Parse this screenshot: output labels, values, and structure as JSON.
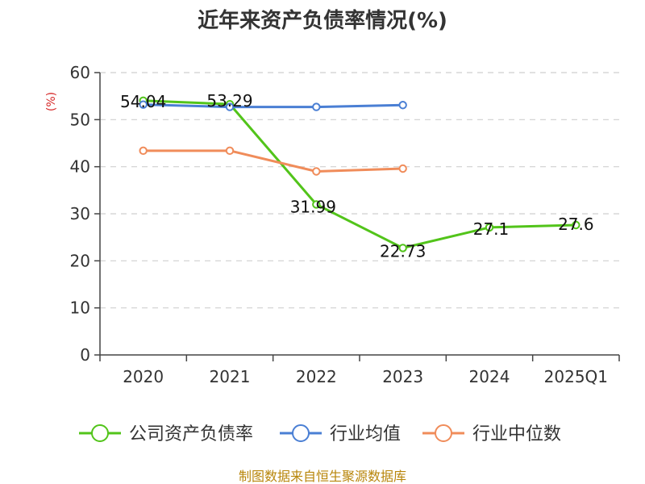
{
  "chart_data": {
    "type": "line",
    "title": "近年来资产负债率情况(%)",
    "ylabel": "(%)",
    "xlabel": "",
    "ylim": [
      0,
      60
    ],
    "yticks": [
      0,
      10,
      20,
      30,
      40,
      50,
      60
    ],
    "categories": [
      "2020",
      "2021",
      "2022",
      "2023",
      "2024",
      "2025Q1"
    ],
    "grid": true,
    "legend_position": "bottom",
    "series": [
      {
        "name": "公司资产负债率",
        "color": "#52c41a",
        "values": [
          54.04,
          53.29,
          31.99,
          22.73,
          27.1,
          27.6
        ],
        "data_labels": [
          "54.04",
          "53.29",
          "31.99",
          "22.73",
          "27.1",
          "27.6"
        ]
      },
      {
        "name": "行业均值",
        "color": "#4a7fd4",
        "values": [
          53.2,
          52.7,
          52.7,
          53.1,
          null,
          null
        ],
        "data_labels": []
      },
      {
        "name": "行业中位数",
        "color": "#f08c5a",
        "values": [
          43.4,
          43.4,
          39.0,
          39.6,
          null,
          null
        ],
        "data_labels": []
      }
    ],
    "source": "制图数据来自恒生聚源数据库"
  }
}
